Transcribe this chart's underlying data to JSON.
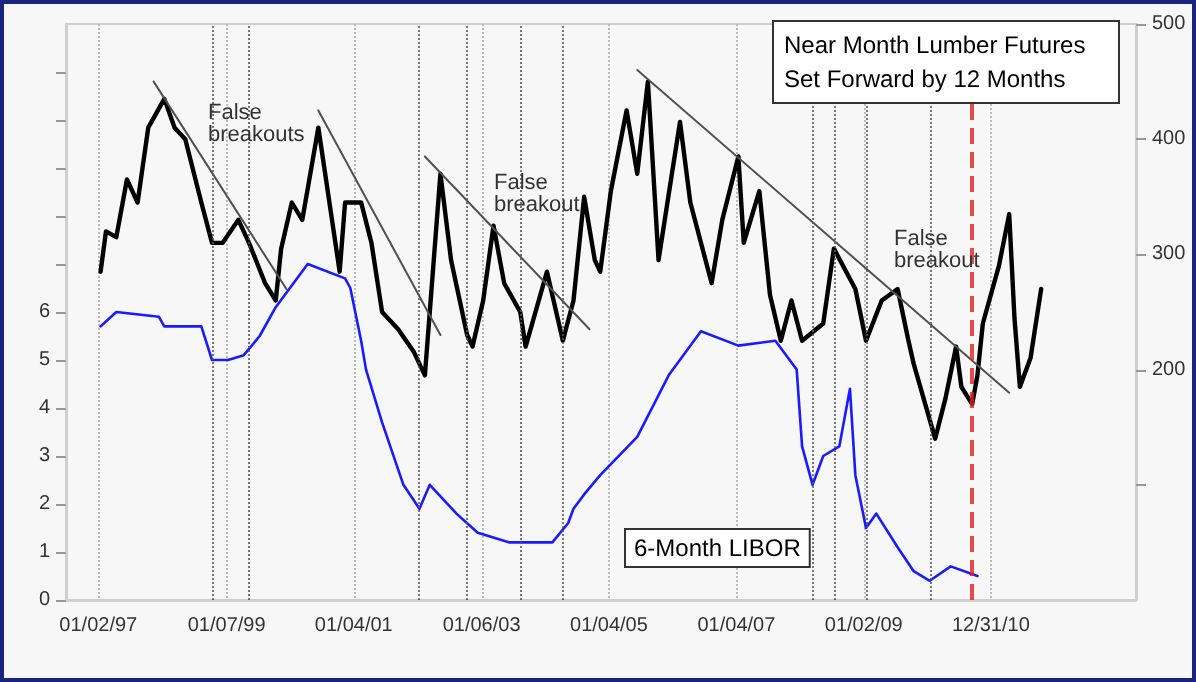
{
  "chart_data": {
    "type": "line",
    "title": "Near Month Lumber Futures Set Forward by 12 Months",
    "marker": "none",
    "grid": "x",
    "legend": false,
    "xlim": [
      "1996-07-01",
      "2013-04-10"
    ],
    "xticks": [
      {
        "value": "1997-01-02",
        "label": "01/02/97"
      },
      {
        "value": "1999-01-07",
        "label": "01/07/99"
      },
      {
        "value": "2001-01-04",
        "label": "01/04/01"
      },
      {
        "value": "2003-01-06",
        "label": "01/06/03"
      },
      {
        "value": "2005-01-04",
        "label": "01/04/05"
      },
      {
        "value": "2007-01-04",
        "label": "01/04/07"
      },
      {
        "value": "2009-01-02",
        "label": "01/02/09"
      },
      {
        "value": "2010-12-31",
        "label": "12/31/10"
      }
    ],
    "ylim": [
      0,
      12
    ],
    "yticks": [
      0,
      1,
      2,
      3,
      4,
      5,
      6,
      {
        "value": 7,
        "label": null
      },
      {
        "value": 8,
        "label": null
      },
      {
        "value": 9,
        "label": null
      },
      {
        "value": 10,
        "label": null
      },
      {
        "value": 11,
        "label": null
      }
    ],
    "y2lim": [
      0,
      500
    ],
    "y2ticks": [
      {
        "value": 100,
        "label": null
      },
      200,
      300,
      400,
      500
    ],
    "series": [
      {
        "color": "#000000",
        "axis": "y2",
        "x": [
          "1997-01",
          "1997-02",
          "1997-04",
          "1997-06",
          "1997-08",
          "1997-10",
          "1998-01",
          "1998-03",
          "1998-05",
          "1998-08",
          "1998-10",
          "1998-12",
          "1999-03",
          "1999-05",
          "1999-08",
          "1999-10",
          "1999-11",
          "2000-01",
          "2000-03",
          "2000-06",
          "2000-10",
          "2000-11",
          "2001-02",
          "2001-04",
          "2001-06",
          "2001-09",
          "2001-12",
          "2002-02",
          "2002-03",
          "2002-05",
          "2002-07",
          "2002-10",
          "2002-11",
          "2003-01",
          "2003-03",
          "2003-05",
          "2003-08",
          "2003-09",
          "2004-01",
          "2004-04",
          "2004-06",
          "2004-08",
          "2004-10",
          "2004-11",
          "2005-01",
          "2005-04",
          "2005-06",
          "2005-08",
          "2005-10",
          "2005-12",
          "2006-02",
          "2006-04",
          "2006-08",
          "2006-10",
          "2007-01",
          "2007-02",
          "2007-05",
          "2007-07",
          "2007-09",
          "2007-11",
          "2008-01",
          "2008-05",
          "2008-07",
          "2008-11",
          "2009-01",
          "2009-04",
          "2009-07",
          "2009-09",
          "2009-10",
          "2010-02",
          "2010-04",
          "2010-06",
          "2010-07",
          "2010-09",
          "2010-10",
          "2010-11",
          "2011-02",
          "2011-04",
          "2011-05",
          "2011-06",
          "2011-08",
          "2011-10"
        ],
        "values": [
          285,
          320,
          315,
          365,
          345,
          410,
          435,
          410,
          400,
          345,
          310,
          310,
          330,
          310,
          275,
          260,
          305,
          345,
          330,
          410,
          285,
          345,
          345,
          310,
          250,
          235,
          215,
          195,
          250,
          370,
          295,
          230,
          220,
          260,
          325,
          275,
          250,
          220,
          285,
          225,
          260,
          350,
          295,
          285,
          355,
          425,
          370,
          450,
          295,
          355,
          415,
          345,
          275,
          330,
          385,
          310,
          355,
          265,
          225,
          260,
          225,
          240,
          305,
          270,
          225,
          260,
          270,
          225,
          205,
          140,
          175,
          220,
          185,
          170,
          195,
          240,
          290,
          335,
          245,
          185,
          210,
          270
        ]
      },
      {
        "name": "6-Month LIBOR",
        "color": "#1a1aff",
        "axis": "y",
        "x": [
          "1997-01",
          "1997-04",
          "1997-12",
          "1998-01",
          "1998-08",
          "1998-10",
          "1999-01",
          "1999-04",
          "1999-07",
          "1999-10",
          "2000-04",
          "2000-11",
          "2000-12",
          "2001-02",
          "2001-03",
          "2001-06",
          "2001-10",
          "2002-01",
          "2002-03",
          "2002-08",
          "2002-10",
          "2002-12",
          "2003-06",
          "2003-11",
          "2004-02",
          "2004-05",
          "2004-06",
          "2004-08",
          "2004-11",
          "2005-06",
          "2005-12",
          "2006-06",
          "2007-01",
          "2007-08",
          "2007-12",
          "2008-01",
          "2008-03",
          "2008-05",
          "2008-08",
          "2008-10",
          "2008-11",
          "2009-01",
          "2009-03",
          "2009-07",
          "2009-10",
          "2010-01",
          "2010-05",
          "2010-10"
        ],
        "values": [
          5.7,
          6.0,
          5.9,
          5.7,
          5.7,
          5.0,
          5.0,
          5.1,
          5.5,
          6.1,
          7.0,
          6.7,
          6.5,
          5.4,
          4.8,
          3.7,
          2.4,
          1.9,
          2.4,
          1.8,
          1.6,
          1.4,
          1.2,
          1.2,
          1.2,
          1.6,
          1.9,
          2.2,
          2.6,
          3.4,
          4.7,
          5.6,
          5.3,
          5.4,
          4.8,
          3.2,
          2.4,
          3.0,
          3.2,
          4.4,
          2.6,
          1.5,
          1.8,
          1.1,
          0.6,
          0.4,
          0.7,
          0.5
        ]
      },
      {
        "color": "#505050",
        "axis": "y2",
        "x": [
          "1997-11",
          "1999-12"
        ],
        "values": [
          450,
          270
        ]
      },
      {
        "color": "#505050",
        "axis": "y2",
        "x": [
          "2000-06",
          "2002-05"
        ],
        "values": [
          425,
          230
        ]
      },
      {
        "color": "#505050",
        "axis": "y2",
        "x": [
          "2002-02",
          "2004-09"
        ],
        "values": [
          385,
          235
        ]
      },
      {
        "color": "#505050",
        "axis": "y2",
        "x": [
          "2005-06",
          "2011-04"
        ],
        "values": [
          460,
          180
        ]
      }
    ],
    "ref_lines": [
      {
        "axis": "x",
        "value": "1998-10",
        "color": "#555555",
        "line_style": "dotted"
      },
      {
        "axis": "x",
        "value": "1999-05",
        "color": "#555555",
        "line_style": "dotted"
      },
      {
        "axis": "x",
        "value": "2002-01",
        "color": "#555555",
        "line_style": "dotted"
      },
      {
        "axis": "x",
        "value": "2002-10",
        "color": "#555555",
        "line_style": "dotted"
      },
      {
        "axis": "x",
        "value": "2003-08",
        "color": "#555555",
        "line_style": "dotted"
      },
      {
        "axis": "x",
        "value": "2004-04",
        "color": "#555555",
        "line_style": "dotted"
      },
      {
        "axis": "x",
        "value": "2008-03",
        "color": "#555555",
        "line_style": "dotted"
      },
      {
        "axis": "x",
        "value": "2008-07",
        "color": "#555555",
        "line_style": "dotted"
      },
      {
        "axis": "x",
        "value": "2009-01",
        "color": "#555555",
        "line_style": "dotted"
      },
      {
        "axis": "x",
        "value": "2010-01",
        "color": "#555555",
        "line_style": "dotted"
      },
      {
        "axis": "x",
        "value": "2010-09",
        "color": "#e02020",
        "line_style": "dashed"
      }
    ],
    "annotations": [
      "False breakouts",
      "False breakout",
      "False breakout"
    ]
  }
}
